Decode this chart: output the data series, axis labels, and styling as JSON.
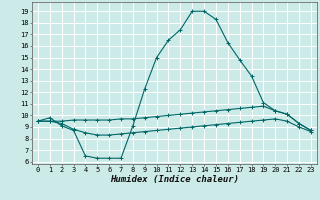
{
  "title": "",
  "xlabel": "Humidex (Indice chaleur)",
  "bg_color": "#cceae8",
  "grid_color": "#ffffff",
  "line_color": "#006666",
  "xlim": [
    -0.5,
    23.5
  ],
  "ylim": [
    5.8,
    19.8
  ],
  "xticks": [
    0,
    1,
    2,
    3,
    4,
    5,
    6,
    7,
    8,
    9,
    10,
    11,
    12,
    13,
    14,
    15,
    16,
    17,
    18,
    19,
    20,
    21,
    22,
    23
  ],
  "yticks": [
    6,
    7,
    8,
    9,
    10,
    11,
    12,
    13,
    14,
    15,
    16,
    17,
    18,
    19
  ],
  "curve1_x": [
    0,
    1,
    2,
    3,
    4,
    5,
    6,
    7,
    8,
    9,
    10,
    11,
    12,
    13,
    14,
    15,
    16,
    17,
    18,
    19,
    20,
    21,
    22,
    23
  ],
  "curve1_y": [
    9.5,
    9.8,
    9.1,
    8.7,
    6.5,
    6.3,
    6.3,
    6.3,
    9.1,
    12.3,
    15.0,
    16.5,
    17.4,
    19.0,
    19.0,
    18.3,
    16.3,
    14.8,
    13.4,
    11.1,
    10.4,
    10.1,
    9.3,
    8.7
  ],
  "curve2_x": [
    0,
    1,
    2,
    3,
    4,
    5,
    6,
    7,
    8,
    9,
    10,
    11,
    12,
    13,
    14,
    15,
    16,
    17,
    18,
    19,
    20,
    21,
    22,
    23
  ],
  "curve2_y": [
    9.5,
    9.5,
    9.5,
    9.6,
    9.6,
    9.6,
    9.6,
    9.7,
    9.7,
    9.8,
    9.9,
    10.0,
    10.1,
    10.2,
    10.3,
    10.4,
    10.5,
    10.6,
    10.7,
    10.8,
    10.4,
    10.1,
    9.3,
    8.7
  ],
  "curve3_x": [
    0,
    1,
    2,
    3,
    4,
    5,
    6,
    7,
    8,
    9,
    10,
    11,
    12,
    13,
    14,
    15,
    16,
    17,
    18,
    19,
    20,
    21,
    22,
    23
  ],
  "curve3_y": [
    9.5,
    9.5,
    9.3,
    8.8,
    8.5,
    8.3,
    8.3,
    8.4,
    8.5,
    8.6,
    8.7,
    8.8,
    8.9,
    9.0,
    9.1,
    9.2,
    9.3,
    9.4,
    9.5,
    9.6,
    9.7,
    9.5,
    9.0,
    8.6
  ],
  "tick_fontsize": 5.0,
  "xlabel_fontsize": 6.5
}
